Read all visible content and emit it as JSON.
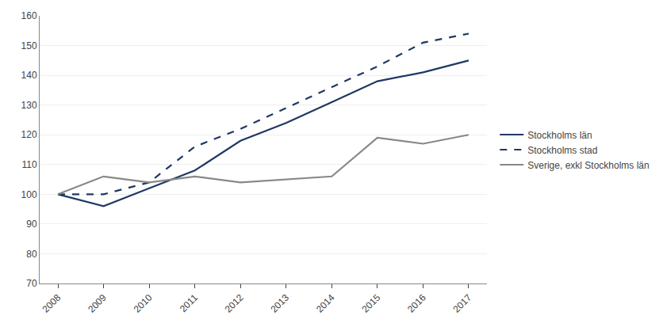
{
  "chart_data": {
    "type": "line",
    "x": [
      2008,
      2009,
      2010,
      2011,
      2012,
      2013,
      2014,
      2015,
      2016,
      2017
    ],
    "series": [
      {
        "name": "Stockholms län",
        "color": "#1F3864",
        "line_style": "solid",
        "values": [
          100,
          96,
          102,
          108,
          118,
          124,
          131,
          138,
          141,
          145
        ]
      },
      {
        "name": "Stockholms stad",
        "color": "#1F3864",
        "line_style": "dashed",
        "values": [
          100,
          100,
          104,
          116,
          122,
          129,
          136,
          143,
          151,
          154
        ]
      },
      {
        "name": "Sverige, exkl Stockholms län",
        "color": "#888888",
        "line_style": "solid",
        "values": [
          100,
          106,
          104,
          106,
          104,
          105,
          106,
          119,
          117,
          120
        ]
      }
    ],
    "xlim": [
      2007.6,
      2017.4
    ],
    "xticks": [
      2008,
      2009,
      2010,
      2011,
      2012,
      2013,
      2014,
      2015,
      2016,
      2017
    ],
    "ylim": [
      70,
      160
    ],
    "yticks": [
      70,
      80,
      90,
      100,
      110,
      120,
      130,
      140,
      150,
      160
    ],
    "grid": true,
    "legend": "right"
  }
}
